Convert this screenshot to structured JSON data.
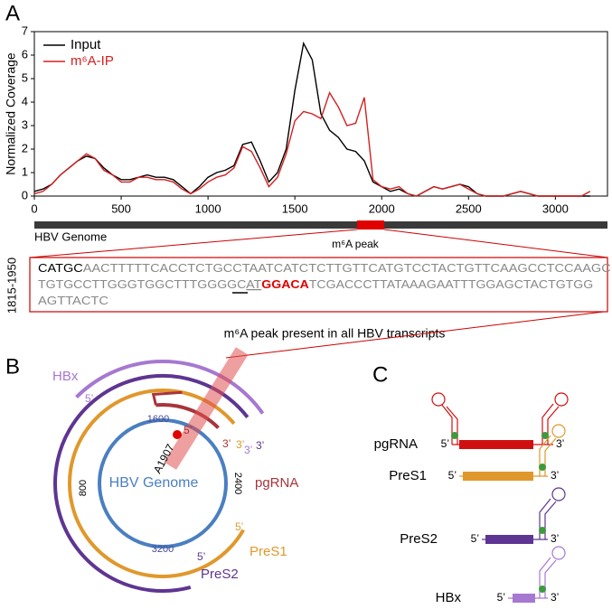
{
  "panel_labels": {
    "a": "A",
    "b": "B",
    "c": "C"
  },
  "chart_data": {
    "type": "line",
    "ylabel": "Normalized Coverage",
    "x": [
      0,
      50,
      100,
      150,
      200,
      250,
      300,
      350,
      400,
      450,
      500,
      550,
      600,
      650,
      700,
      750,
      800,
      850,
      900,
      950,
      1000,
      1050,
      1100,
      1150,
      1200,
      1250,
      1300,
      1350,
      1400,
      1450,
      1500,
      1550,
      1600,
      1650,
      1700,
      1750,
      1800,
      1850,
      1900,
      1950,
      2000,
      2050,
      2100,
      2150,
      2200,
      2250,
      2300,
      2350,
      2400,
      2450,
      2500,
      2550,
      2600,
      2650,
      2700,
      2750,
      2800,
      2850,
      2900,
      2950,
      3000,
      3050,
      3100,
      3150,
      3200
    ],
    "series": [
      {
        "name": "Input",
        "color": "#000000",
        "values": [
          0.2,
          0.3,
          0.5,
          0.9,
          1.2,
          1.5,
          1.7,
          1.6,
          1.2,
          0.9,
          0.7,
          0.7,
          0.8,
          0.9,
          0.8,
          0.8,
          0.7,
          0.4,
          0.1,
          0.4,
          0.8,
          1.0,
          1.1,
          1.3,
          2.2,
          2.3,
          1.5,
          0.6,
          1.0,
          2.0,
          4.5,
          6.5,
          5.8,
          3.5,
          2.8,
          2.5,
          2.0,
          1.9,
          1.5,
          0.6,
          0.4,
          0.2,
          0.3,
          0.1,
          0.0,
          0.2,
          0.4,
          0.3,
          0.4,
          0.5,
          0.4,
          0.1,
          0.0,
          0.0,
          0.0,
          0.1,
          0.2,
          0.1,
          0.0,
          0.0,
          0.0,
          0.0,
          0.0,
          0.0,
          0.0
        ]
      },
      {
        "name": "m⁶A-IP",
        "color": "#d42020",
        "values": [
          0.1,
          0.2,
          0.5,
          0.9,
          1.2,
          1.5,
          1.8,
          1.6,
          1.1,
          0.9,
          0.6,
          0.6,
          0.8,
          0.8,
          0.7,
          0.7,
          0.6,
          0.3,
          0.1,
          0.3,
          0.6,
          0.8,
          0.9,
          1.2,
          2.1,
          1.9,
          1.2,
          0.4,
          0.8,
          1.8,
          3.2,
          3.6,
          3.5,
          3.3,
          4.4,
          3.8,
          3.0,
          3.1,
          4.2,
          0.7,
          0.4,
          0.3,
          0.4,
          0.1,
          0.0,
          0.2,
          0.4,
          0.3,
          0.4,
          0.5,
          0.3,
          0.1,
          0.0,
          0.0,
          0.0,
          0.1,
          0.2,
          0.1,
          0.0,
          0.0,
          0.0,
          0.0,
          0.0,
          0.0,
          0.2
        ]
      }
    ],
    "xlim": [
      0,
      3300
    ],
    "ylim": [
      0,
      7
    ],
    "xticks": [
      0,
      500,
      1000,
      1500,
      2000,
      2500,
      3000
    ],
    "yticks": [
      0,
      1,
      2,
      3,
      4,
      5,
      6,
      7
    ],
    "legend": "upper left"
  },
  "genome_bar": {
    "label": "HBV Genome",
    "peak_label": "m⁶A peak"
  },
  "sequence": {
    "range_label": "1815-1950",
    "lines": [
      [
        {
          "text": "CATGC",
          "style": "plain"
        },
        {
          "text": "AACTTTTTCACCTCTGCCTAATCATCTCTTGTTCATGTCCTACTGTTCAAGCCTCCAAGC",
          "style": "gray"
        }
      ],
      [
        {
          "text": "TGTGCCTTGGGTGGCTTTGGGGC",
          "style": "gray"
        },
        {
          "text": "AT",
          "style": "underline"
        },
        {
          "text": "GGACA",
          "style": "motif"
        },
        {
          "text": "TCGACCCTTATAAAGAATTTGGAGCTACTGTGG",
          "style": "gray"
        }
      ],
      [
        {
          "text": "AGTTACTC",
          "style": "gray"
        }
      ]
    ]
  },
  "annotation": "m⁶A peak present in all HBV transcripts",
  "circle_diagram": {
    "genome_label": "HBV Genome",
    "site_label": "A1907",
    "positions": [
      1600,
      800,
      2400,
      3200
    ],
    "transcripts": [
      {
        "name": "HBx",
        "five": "5’",
        "three": "3’"
      },
      {
        "name": "pgRNA",
        "five": "5’",
        "three": "3’"
      },
      {
        "name": "PreS1",
        "five": "5’",
        "three": "3’"
      },
      {
        "name": "PreS2",
        "five": "5’",
        "three": "3’"
      }
    ]
  },
  "transcript_diagrams": [
    {
      "name": "pgRNA",
      "five": "5’",
      "three": "3’"
    },
    {
      "name": "PreS1",
      "five": "5’",
      "three": "3’"
    },
    {
      "name": "PreS2",
      "five": "5’",
      "three": "3’"
    },
    {
      "name": "HBx",
      "five": "5’",
      "three": "3’"
    }
  ]
}
